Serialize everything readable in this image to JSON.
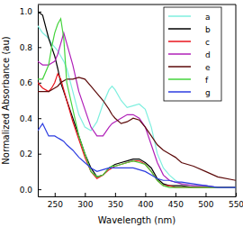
{
  "chart_data": {
    "type": "line",
    "x_label": "Wavelength (nm)",
    "y_label": "Normalized Absorbance (au)",
    "x": [
      222,
      230,
      240,
      245,
      250,
      255,
      260,
      265,
      270,
      280,
      290,
      300,
      310,
      320,
      330,
      340,
      345,
      350,
      360,
      370,
      380,
      390,
      400,
      410,
      420,
      430,
      440,
      450,
      460,
      480,
      500,
      520,
      550
    ],
    "series": [
      {
        "name": "a",
        "color": "#7fefdf",
        "values": [
          0.92,
          0.88,
          0.85,
          0.82,
          0.8,
          0.78,
          0.75,
          0.72,
          0.68,
          0.55,
          0.42,
          0.35,
          0.33,
          0.38,
          0.48,
          0.56,
          0.58,
          0.56,
          0.5,
          0.46,
          0.47,
          0.48,
          0.45,
          0.35,
          0.2,
          0.12,
          0.08,
          0.05,
          0.03,
          0.02,
          0.02,
          0.01,
          0.01
        ]
      },
      {
        "name": "b",
        "color": "#000000",
        "values": [
          1.0,
          0.98,
          0.85,
          0.8,
          0.75,
          0.68,
          0.6,
          0.55,
          0.5,
          0.4,
          0.3,
          0.2,
          0.12,
          0.07,
          0.08,
          0.12,
          0.13,
          0.14,
          0.15,
          0.16,
          0.17,
          0.17,
          0.15,
          0.12,
          0.06,
          0.03,
          0.02,
          0.02,
          0.02,
          0.01,
          0.01,
          0.01,
          0.01
        ]
      },
      {
        "name": "c",
        "color": "#e8141c",
        "values": [
          0.6,
          0.57,
          0.55,
          0.57,
          0.6,
          0.65,
          0.62,
          0.56,
          0.5,
          0.38,
          0.28,
          0.18,
          0.1,
          0.06,
          0.08,
          0.11,
          0.12,
          0.13,
          0.14,
          0.15,
          0.16,
          0.16,
          0.14,
          0.1,
          0.05,
          0.02,
          0.02,
          0.01,
          0.01,
          0.01,
          0.01,
          0.01,
          0.01
        ]
      },
      {
        "name": "d",
        "color": "#b020b8",
        "values": [
          0.72,
          0.7,
          0.7,
          0.71,
          0.72,
          0.76,
          0.82,
          0.88,
          0.82,
          0.7,
          0.55,
          0.45,
          0.35,
          0.3,
          0.3,
          0.35,
          0.37,
          0.38,
          0.4,
          0.42,
          0.42,
          0.4,
          0.35,
          0.25,
          0.15,
          0.08,
          0.05,
          0.04,
          0.03,
          0.02,
          0.02,
          0.01,
          0.01
        ]
      },
      {
        "name": "e",
        "color": "#5c0a0a",
        "values": [
          0.55,
          0.55,
          0.55,
          0.56,
          0.57,
          0.58,
          0.6,
          0.61,
          0.62,
          0.62,
          0.63,
          0.62,
          0.58,
          0.54,
          0.5,
          0.45,
          0.42,
          0.4,
          0.37,
          0.38,
          0.4,
          0.39,
          0.35,
          0.3,
          0.25,
          0.22,
          0.2,
          0.18,
          0.15,
          0.13,
          0.1,
          0.07,
          0.05
        ]
      },
      {
        "name": "f",
        "color": "#44d43c",
        "values": [
          0.62,
          0.62,
          0.7,
          0.8,
          0.88,
          0.93,
          0.96,
          0.85,
          0.6,
          0.45,
          0.3,
          0.2,
          0.1,
          0.07,
          0.08,
          0.12,
          0.13,
          0.13,
          0.14,
          0.15,
          0.16,
          0.15,
          0.14,
          0.1,
          0.05,
          0.02,
          0.01,
          0.01,
          0.01,
          0.01,
          0.01,
          0.01,
          0.01
        ]
      },
      {
        "name": "g",
        "color": "#2c3ce0",
        "values": [
          0.33,
          0.37,
          0.3,
          0.3,
          0.3,
          0.29,
          0.28,
          0.27,
          0.25,
          0.22,
          0.18,
          0.15,
          0.12,
          0.1,
          0.11,
          0.12,
          0.12,
          0.12,
          0.12,
          0.12,
          0.12,
          0.11,
          0.1,
          0.08,
          0.06,
          0.05,
          0.05,
          0.04,
          0.04,
          0.03,
          0.02,
          0.01,
          0.01
        ]
      }
    ],
    "xlim": [
      222,
      550
    ],
    "xticks": [
      250,
      300,
      350,
      400,
      450,
      500,
      550
    ],
    "ylim": [
      -0.04,
      1.04
    ],
    "yticks": [
      {
        "value": 0,
        "label": "0.0"
      },
      0.2,
      0.4,
      0.6,
      0.8,
      {
        "value": 1,
        "label": "1.0"
      }
    ],
    "legend": "upper right"
  }
}
